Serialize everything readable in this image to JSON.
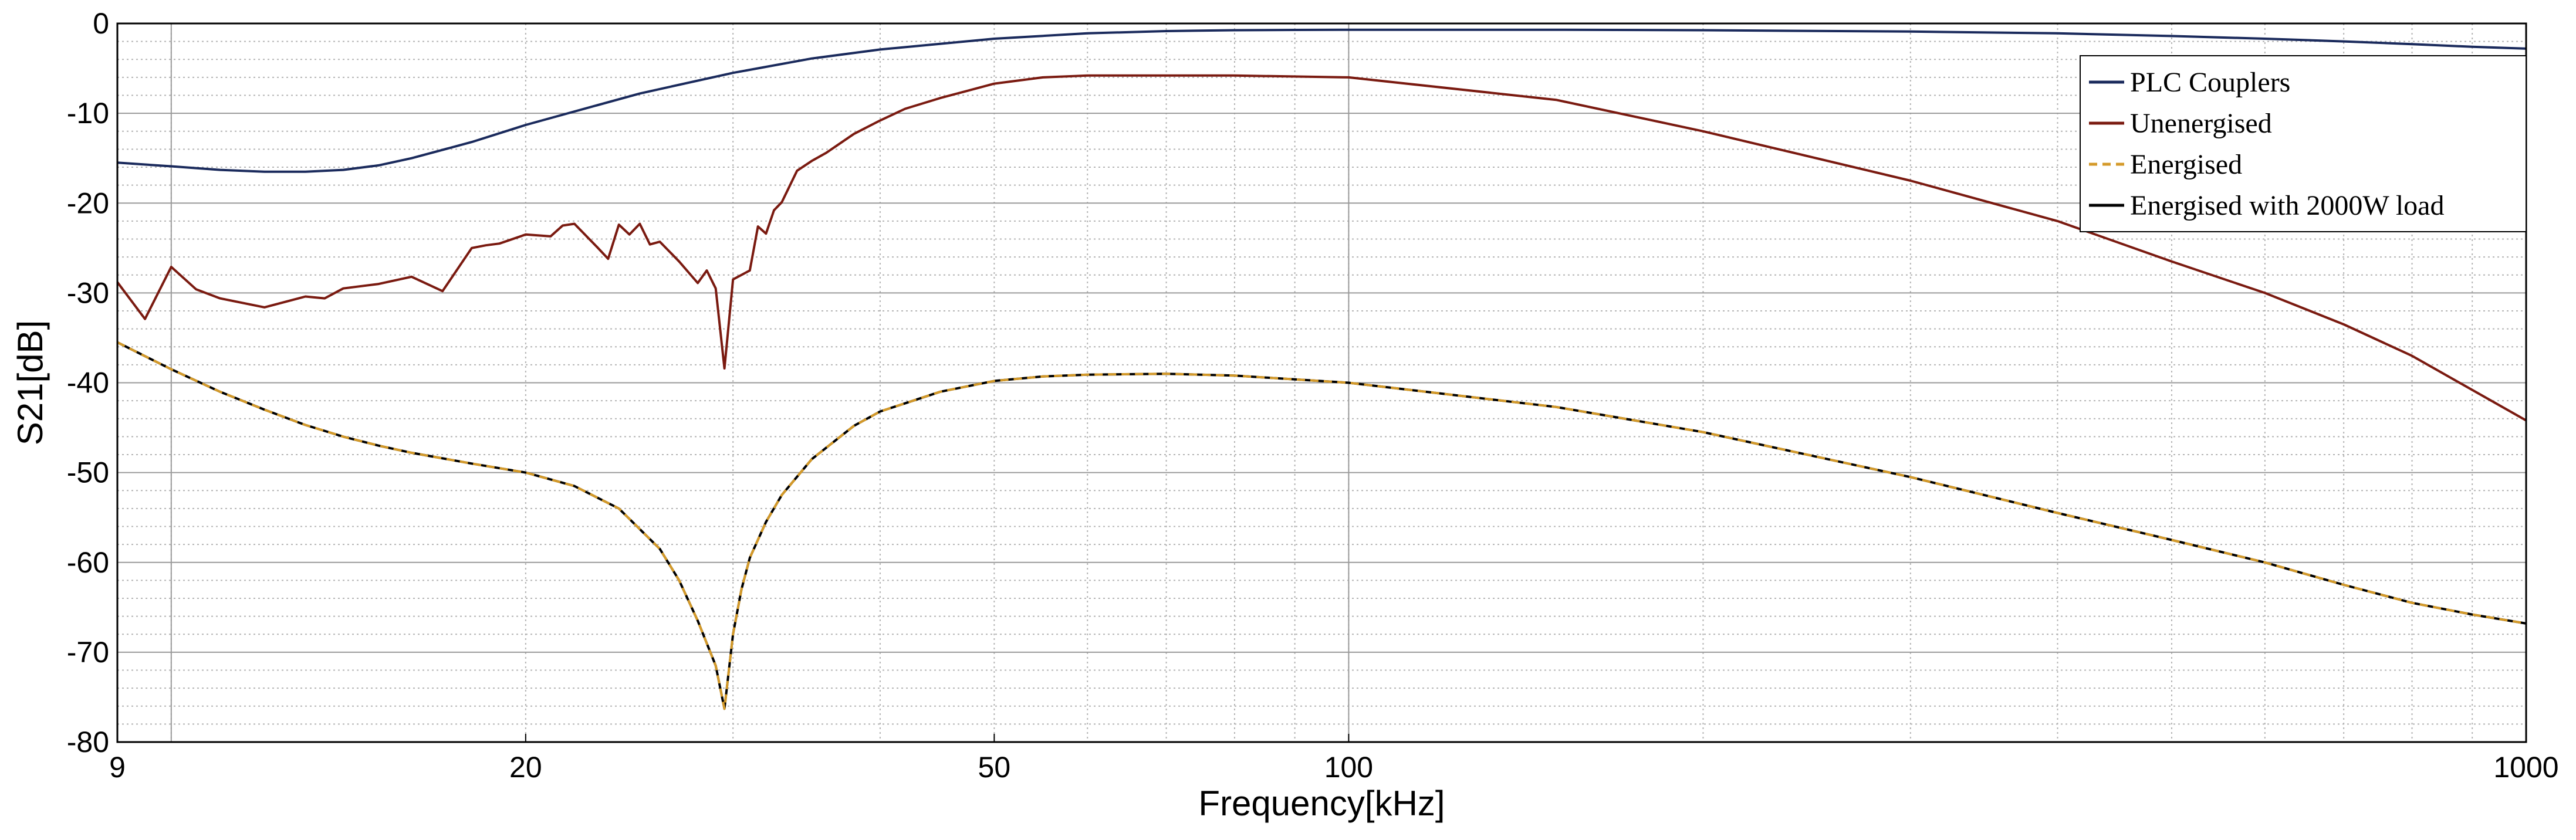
{
  "chart_data": {
    "type": "line",
    "title": "",
    "xlabel": "Frequency[kHz]",
    "ylabel": "S21[dB]",
    "xscale": "log",
    "xlim": [
      9,
      1000
    ],
    "ylim": [
      -80,
      0
    ],
    "xticks": [
      9,
      20,
      50,
      100,
      1000
    ],
    "xtick_labels": [
      "9",
      "20",
      "50",
      "100",
      "1000"
    ],
    "yticks": [
      0,
      -10,
      -20,
      -30,
      -40,
      -50,
      -60,
      -70,
      -80
    ],
    "ytick_labels": [
      "0",
      "-10",
      "-20",
      "-30",
      "-40",
      "-50",
      "-60",
      "-70",
      "-80"
    ],
    "grid": true,
    "legend_position": "top-right",
    "series": [
      {
        "name": "PLC Couplers",
        "color": "#1a2a5c",
        "dash": "solid",
        "x": [
          9,
          10,
          11,
          12,
          13,
          14,
          15,
          16,
          18,
          20,
          25,
          30,
          35,
          40,
          50,
          60,
          70,
          80,
          90,
          100,
          150,
          200,
          300,
          400,
          500,
          600,
          700,
          800,
          900,
          1000
        ],
        "y": [
          -15.5,
          -15.9,
          -16.3,
          -16.5,
          -16.5,
          -16.3,
          -15.8,
          -15.0,
          -13.2,
          -11.3,
          -7.8,
          -5.5,
          -3.9,
          -2.9,
          -1.7,
          -1.1,
          -0.85,
          -0.75,
          -0.72,
          -0.7,
          -0.7,
          -0.75,
          -0.9,
          -1.1,
          -1.4,
          -1.7,
          -2.0,
          -2.3,
          -2.6,
          -2.8
        ]
      },
      {
        "name": "Unenergised",
        "color": "#7a1a10",
        "dash": "solid",
        "x": [
          9,
          9.5,
          10,
          10.5,
          11,
          12,
          13,
          13.5,
          14,
          15,
          16,
          17,
          18,
          18.5,
          19,
          20,
          21,
          21.5,
          22,
          23,
          23.5,
          24,
          24.5,
          25,
          25.5,
          26,
          27,
          28,
          28.5,
          29,
          29.5,
          30,
          31,
          31.5,
          32,
          32.5,
          33,
          34,
          35,
          36,
          38,
          40,
          42,
          45,
          50,
          55,
          60,
          70,
          80,
          100,
          150,
          200,
          300,
          400,
          500,
          600,
          700,
          800,
          900,
          1000
        ],
        "y": [
          -28.8,
          -32.9,
          -27.1,
          -29.6,
          -30.6,
          -31.6,
          -30.4,
          -30.6,
          -29.5,
          -29.0,
          -28.2,
          -29.8,
          -25.0,
          -24.7,
          -24.5,
          -23.5,
          -23.7,
          -22.5,
          -22.3,
          -24.9,
          -26.2,
          -22.4,
          -23.5,
          -22.3,
          -24.6,
          -24.3,
          -26.5,
          -28.9,
          -27.5,
          -29.5,
          -38.4,
          -28.5,
          -27.5,
          -22.6,
          -23.4,
          -20.8,
          -19.9,
          -16.4,
          -15.3,
          -14.4,
          -12.3,
          -10.8,
          -9.5,
          -8.3,
          -6.7,
          -6.0,
          -5.8,
          -5.8,
          -5.8,
          -6.0,
          -8.5,
          -12.0,
          -17.5,
          -22.0,
          -26.5,
          -30.0,
          -33.5,
          -37.0,
          -40.8,
          -44.2
        ]
      },
      {
        "name": "Energised",
        "color": "#d49a2a",
        "dash": "dashed",
        "x": [
          9,
          10,
          11,
          12,
          13,
          14,
          15,
          16,
          18,
          20,
          22,
          24,
          26,
          27,
          28,
          29,
          29.5,
          30,
          30.5,
          31,
          32,
          33,
          35,
          38,
          40,
          45,
          50,
          55,
          60,
          70,
          80,
          100,
          150,
          200,
          300,
          400,
          500,
          600,
          700,
          800,
          900,
          1000
        ],
        "y": [
          -35.5,
          -38.5,
          -41.0,
          -43.0,
          -44.7,
          -46.0,
          -47.0,
          -47.8,
          -49.0,
          -50.0,
          -51.5,
          -54.0,
          -58.5,
          -62.0,
          -66.5,
          -71.5,
          -76.3,
          -68.0,
          -63.0,
          -59.5,
          -55.5,
          -52.5,
          -48.5,
          -44.8,
          -43.2,
          -41.0,
          -39.8,
          -39.3,
          -39.1,
          -39.0,
          -39.2,
          -40.0,
          -42.7,
          -45.5,
          -50.5,
          -54.5,
          -57.5,
          -60.0,
          -62.5,
          -64.5,
          -65.8,
          -66.8
        ]
      },
      {
        "name": "Energised with 2000W load",
        "color": "#000000",
        "dash": "solid",
        "x": [
          9,
          10,
          11,
          12,
          13,
          14,
          15,
          16,
          18,
          20,
          22,
          24,
          26,
          27,
          28,
          29,
          29.5,
          30,
          30.5,
          31,
          32,
          33,
          35,
          38,
          40,
          45,
          50,
          55,
          60,
          70,
          80,
          100,
          150,
          200,
          300,
          400,
          500,
          600,
          700,
          800,
          900,
          1000
        ],
        "y": [
          -35.5,
          -38.5,
          -41.0,
          -43.0,
          -44.7,
          -46.0,
          -47.0,
          -47.8,
          -49.0,
          -50.0,
          -51.5,
          -54.0,
          -58.5,
          -62.0,
          -66.5,
          -71.5,
          -76.3,
          -68.0,
          -63.0,
          -59.5,
          -55.5,
          -52.5,
          -48.5,
          -44.8,
          -43.2,
          -41.0,
          -39.8,
          -39.3,
          -39.1,
          -39.0,
          -39.2,
          -40.0,
          -42.7,
          -45.5,
          -50.5,
          -54.5,
          -57.5,
          -60.0,
          -62.5,
          -64.5,
          -65.8,
          -66.8
        ]
      }
    ]
  }
}
